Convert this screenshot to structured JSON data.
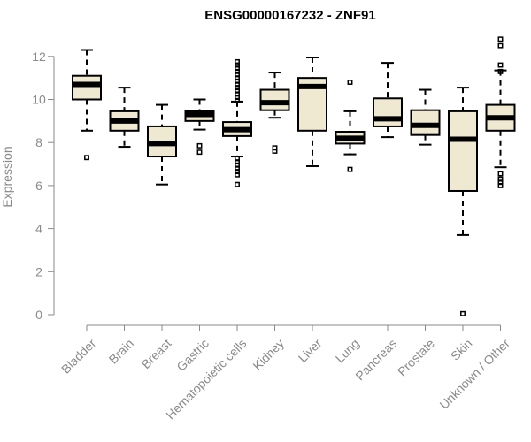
{
  "chart_data": {
    "type": "box",
    "title": "ENSG00000167232 - ZNF91",
    "xlabel": "",
    "ylabel": "Expression",
    "ylim": [
      0,
      12.8
    ],
    "yticks": [
      0,
      2,
      4,
      6,
      8,
      10,
      12
    ],
    "box_fill": "#efe9d2",
    "categories": [
      "Bladder",
      "Brain",
      "Breast",
      "Gastric",
      "Hematopoietic cells",
      "Kidney",
      "Liver",
      "Lung",
      "Pancreas",
      "Prostate",
      "Skin",
      "Unknown / Other"
    ],
    "boxes": [
      {
        "min": 8.55,
        "q1": 10.0,
        "median": 10.7,
        "q3": 11.1,
        "max": 12.3,
        "outliers": [
          7.3
        ]
      },
      {
        "min": 7.8,
        "q1": 8.55,
        "median": 9.0,
        "q3": 9.45,
        "max": 10.55,
        "outliers": []
      },
      {
        "min": 6.05,
        "q1": 7.35,
        "median": 7.95,
        "q3": 8.75,
        "max": 9.75,
        "outliers": []
      },
      {
        "min": 8.6,
        "q1": 9.0,
        "median": 9.3,
        "q3": 9.45,
        "max": 10.0,
        "outliers": [
          7.85,
          7.55
        ]
      },
      {
        "min": 7.35,
        "q1": 8.3,
        "median": 8.6,
        "q3": 8.95,
        "max": 9.9,
        "outliers": [
          11.75,
          11.6,
          11.45,
          11.3,
          11.15,
          11.0,
          10.85,
          10.7,
          10.55,
          10.4,
          10.25,
          10.1,
          9.95,
          7.25,
          7.1,
          6.95,
          6.8,
          6.65,
          6.5,
          6.05
        ]
      },
      {
        "min": 9.15,
        "q1": 9.5,
        "median": 9.85,
        "q3": 10.45,
        "max": 11.25,
        "outliers": [
          7.75,
          7.6
        ]
      },
      {
        "min": 6.9,
        "q1": 8.55,
        "median": 10.6,
        "q3": 11.0,
        "max": 11.95,
        "outliers": []
      },
      {
        "min": 7.45,
        "q1": 7.95,
        "median": 8.2,
        "q3": 8.5,
        "max": 9.45,
        "outliers": [
          10.8,
          6.75
        ]
      },
      {
        "min": 8.25,
        "q1": 8.75,
        "median": 9.1,
        "q3": 10.05,
        "max": 11.7,
        "outliers": []
      },
      {
        "min": 7.9,
        "q1": 8.35,
        "median": 8.8,
        "q3": 9.5,
        "max": 10.45,
        "outliers": []
      },
      {
        "min": 3.7,
        "q1": 5.75,
        "median": 8.15,
        "q3": 9.45,
        "max": 10.55,
        "outliers": [
          0.05
        ]
      },
      {
        "min": 6.85,
        "q1": 8.55,
        "median": 9.15,
        "q3": 9.75,
        "max": 11.35,
        "outliers": [
          12.8,
          12.5,
          11.6,
          11.3,
          6.55,
          6.3,
          6.15,
          6.0
        ]
      }
    ]
  }
}
